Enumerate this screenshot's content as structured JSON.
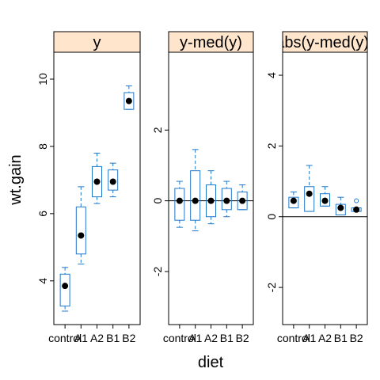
{
  "chart_data": {
    "type": "box",
    "xlabel": "diet",
    "ylabel": "wt.gain",
    "categories": [
      "control",
      "A1",
      "A2",
      "B1",
      "B2"
    ],
    "box_color": "#1f77c9",
    "strip_color": "#ffe5cc",
    "panels": [
      {
        "strip_label": "y",
        "ylim": [
          2.7,
          10.8
        ],
        "yticks": [
          4,
          6,
          8,
          10
        ],
        "reference_line": null,
        "boxes": [
          {
            "category": "control",
            "min": 3.1,
            "q1": 3.25,
            "median": 3.85,
            "q3": 4.2,
            "max": 4.4,
            "outliers": []
          },
          {
            "category": "A1",
            "min": 4.5,
            "q1": 4.8,
            "median": 5.35,
            "q3": 6.2,
            "max": 6.8,
            "outliers": []
          },
          {
            "category": "A2",
            "min": 6.3,
            "q1": 6.5,
            "median": 6.95,
            "q3": 7.4,
            "max": 7.8,
            "outliers": []
          },
          {
            "category": "B1",
            "min": 6.5,
            "q1": 6.7,
            "median": 6.95,
            "q3": 7.3,
            "max": 7.5,
            "outliers": []
          },
          {
            "category": "B2",
            "min": 9.1,
            "q1": 9.1,
            "median": 9.35,
            "q3": 9.6,
            "max": 9.8,
            "outliers": []
          }
        ]
      },
      {
        "strip_label": "y-med(y)",
        "ylim": [
          -3.5,
          4.2
        ],
        "yticks": [
          -2,
          0,
          2
        ],
        "reference_line": 0,
        "boxes": [
          {
            "category": "control",
            "min": -0.75,
            "q1": -0.55,
            "median": 0,
            "q3": 0.35,
            "max": 0.55,
            "outliers": []
          },
          {
            "category": "A1",
            "min": -0.85,
            "q1": -0.55,
            "median": 0,
            "q3": 0.85,
            "max": 1.45,
            "outliers": []
          },
          {
            "category": "A2",
            "min": -0.65,
            "q1": -0.45,
            "median": 0,
            "q3": 0.45,
            "max": 0.85,
            "outliers": []
          },
          {
            "category": "B1",
            "min": -0.45,
            "q1": -0.25,
            "median": 0,
            "q3": 0.35,
            "max": 0.55,
            "outliers": []
          },
          {
            "category": "B2",
            "min": -0.25,
            "q1": -0.25,
            "median": 0,
            "q3": 0.25,
            "max": 0.45,
            "outliers": []
          }
        ]
      },
      {
        "strip_label": "abs(y-med(y))",
        "ylim": [
          -3.05,
          4.65
        ],
        "yticks": [
          -2,
          0,
          2,
          4
        ],
        "reference_line": 0,
        "boxes": [
          {
            "category": "control",
            "min": 0.25,
            "q1": 0.25,
            "median": 0.45,
            "q3": 0.55,
            "max": 0.7,
            "outliers": []
          },
          {
            "category": "A1",
            "min": 0.15,
            "q1": 0.15,
            "median": 0.65,
            "q3": 0.85,
            "max": 1.45,
            "outliers": []
          },
          {
            "category": "A2",
            "min": 0.3,
            "q1": 0.3,
            "median": 0.45,
            "q3": 0.65,
            "max": 0.85,
            "outliers": []
          },
          {
            "category": "B1",
            "min": 0.05,
            "q1": 0.05,
            "median": 0.25,
            "q3": 0.35,
            "max": 0.55,
            "outliers": []
          },
          {
            "category": "B2",
            "min": 0.15,
            "q1": 0.15,
            "median": 0.2,
            "q3": 0.25,
            "max": 0.25,
            "outliers": [
              0.45
            ]
          }
        ]
      }
    ]
  }
}
